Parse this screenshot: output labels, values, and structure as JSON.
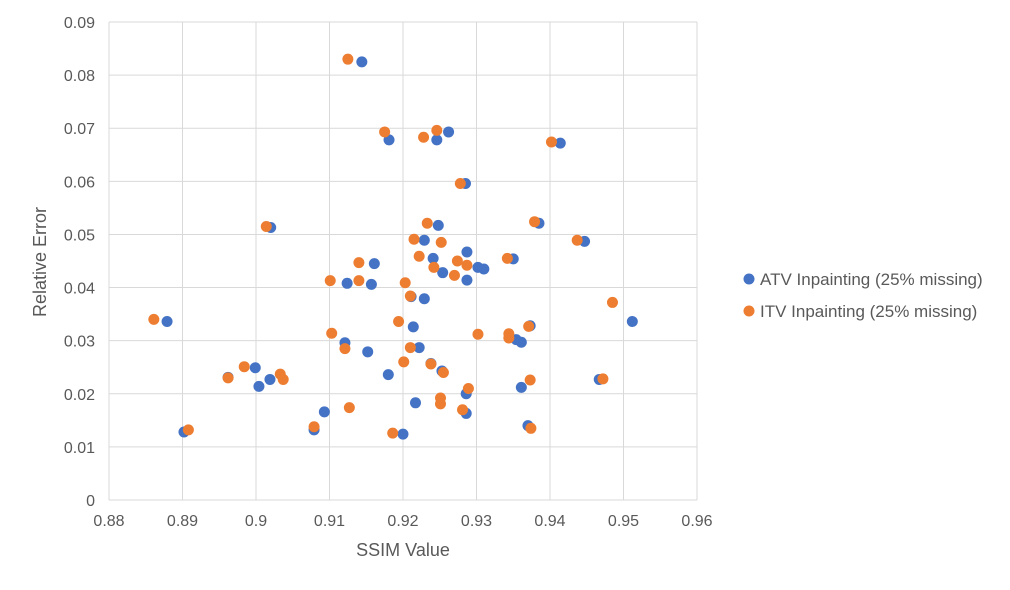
{
  "chart_data": {
    "type": "scatter",
    "title": "",
    "xlabel": "SSIM Value",
    "ylabel": "Relative Error",
    "xlim": [
      0.88,
      0.96
    ],
    "ylim": [
      0,
      0.09
    ],
    "x_ticks": [
      "0.88",
      "0.89",
      "0.9",
      "0.91",
      "0.92",
      "0.93",
      "0.94",
      "0.95",
      "0.96"
    ],
    "y_ticks": [
      "0",
      "0.01",
      "0.02",
      "0.03",
      "0.04",
      "0.05",
      "0.06",
      "0.07",
      "0.08",
      "0.09"
    ],
    "grid": true,
    "legend_position": "right",
    "series": [
      {
        "name": "ATV Inpainting (25% missing)",
        "color": "#4472C4",
        "points": [
          [
            0.9144,
            0.0825
          ],
          [
            0.9262,
            0.0693
          ],
          [
            0.9246,
            0.0678
          ],
          [
            0.9181,
            0.0678
          ],
          [
            0.9414,
            0.0672
          ],
          [
            0.9285,
            0.0596
          ],
          [
            0.9385,
            0.0521
          ],
          [
            0.9248,
            0.0517
          ],
          [
            0.902,
            0.0513
          ],
          [
            0.9229,
            0.0489
          ],
          [
            0.9447,
            0.0487
          ],
          [
            0.9287,
            0.0467
          ],
          [
            0.9241,
            0.0455
          ],
          [
            0.935,
            0.0454
          ],
          [
            0.9161,
            0.0445
          ],
          [
            0.9302,
            0.0438
          ],
          [
            0.931,
            0.0435
          ],
          [
            0.9254,
            0.0428
          ],
          [
            0.9287,
            0.0414
          ],
          [
            0.9124,
            0.0408
          ],
          [
            0.9157,
            0.0406
          ],
          [
            0.9211,
            0.0383
          ],
          [
            0.9229,
            0.0379
          ],
          [
            0.8879,
            0.0336
          ],
          [
            0.9512,
            0.0336
          ],
          [
            0.9373,
            0.0328
          ],
          [
            0.9214,
            0.0326
          ],
          [
            0.9354,
            0.0302
          ],
          [
            0.9361,
            0.0297
          ],
          [
            0.9121,
            0.0296
          ],
          [
            0.9222,
            0.0287
          ],
          [
            0.9152,
            0.0279
          ],
          [
            0.9238,
            0.0257
          ],
          [
            0.8999,
            0.0249
          ],
          [
            0.9253,
            0.0243
          ],
          [
            0.918,
            0.0236
          ],
          [
            0.8962,
            0.0231
          ],
          [
            0.9019,
            0.0227
          ],
          [
            0.9467,
            0.0227
          ],
          [
            0.9004,
            0.0214
          ],
          [
            0.9361,
            0.0212
          ],
          [
            0.9286,
            0.02
          ],
          [
            0.9217,
            0.0183
          ],
          [
            0.9093,
            0.0166
          ],
          [
            0.9286,
            0.0163
          ],
          [
            0.937,
            0.014
          ],
          [
            0.9079,
            0.0132
          ],
          [
            0.8902,
            0.0128
          ],
          [
            0.92,
            0.0124
          ]
        ]
      },
      {
        "name": "ITV Inpainting (25% missing)",
        "color": "#ED7D31",
        "points": [
          [
            0.9125,
            0.083
          ],
          [
            0.9246,
            0.0696
          ],
          [
            0.9175,
            0.0693
          ],
          [
            0.9228,
            0.0683
          ],
          [
            0.9402,
            0.0674
          ],
          [
            0.9278,
            0.0596
          ],
          [
            0.9379,
            0.0524
          ],
          [
            0.9233,
            0.0521
          ],
          [
            0.9014,
            0.0515
          ],
          [
            0.9215,
            0.0491
          ],
          [
            0.9437,
            0.0489
          ],
          [
            0.9252,
            0.0485
          ],
          [
            0.9342,
            0.0455
          ],
          [
            0.9222,
            0.0459
          ],
          [
            0.9274,
            0.045
          ],
          [
            0.914,
            0.0447
          ],
          [
            0.9287,
            0.0442
          ],
          [
            0.9242,
            0.0438
          ],
          [
            0.927,
            0.0423
          ],
          [
            0.9101,
            0.0413
          ],
          [
            0.914,
            0.0413
          ],
          [
            0.9203,
            0.0409
          ],
          [
            0.921,
            0.0384
          ],
          [
            0.9485,
            0.0372
          ],
          [
            0.8861,
            0.034
          ],
          [
            0.9194,
            0.0336
          ],
          [
            0.9371,
            0.0327
          ],
          [
            0.9103,
            0.0314
          ],
          [
            0.9302,
            0.0312
          ],
          [
            0.9344,
            0.0313
          ],
          [
            0.9344,
            0.0305
          ],
          [
            0.921,
            0.0287
          ],
          [
            0.9121,
            0.0285
          ],
          [
            0.9201,
            0.026
          ],
          [
            0.9238,
            0.0256
          ],
          [
            0.8984,
            0.0251
          ],
          [
            0.9255,
            0.024
          ],
          [
            0.9033,
            0.0237
          ],
          [
            0.8962,
            0.023
          ],
          [
            0.9037,
            0.0227
          ],
          [
            0.9472,
            0.0228
          ],
          [
            0.9373,
            0.0226
          ],
          [
            0.9289,
            0.021
          ],
          [
            0.9251,
            0.0192
          ],
          [
            0.9251,
            0.0181
          ],
          [
            0.9127,
            0.0174
          ],
          [
            0.9281,
            0.017
          ],
          [
            0.9079,
            0.0138
          ],
          [
            0.9374,
            0.0135
          ],
          [
            0.8908,
            0.0132
          ],
          [
            0.9186,
            0.0126
          ]
        ]
      }
    ]
  }
}
